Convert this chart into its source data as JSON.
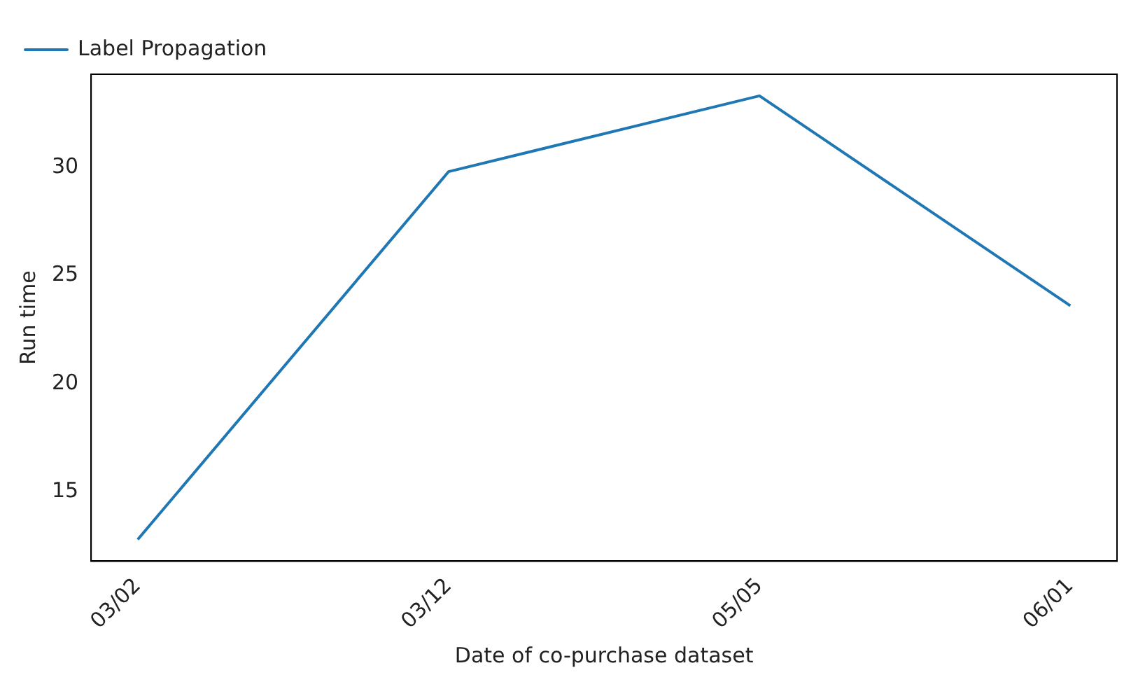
{
  "chart_data": {
    "type": "line",
    "xlabel": "Date of co-purchase dataset",
    "ylabel": "Run time",
    "categories": [
      "03/02",
      "03/12",
      "05/05",
      "06/01"
    ],
    "series": [
      {
        "name": "Label Propagation",
        "color": "#1f77b4",
        "values": [
          12.8,
          29.8,
          33.3,
          23.6
        ]
      }
    ],
    "ylim": [
      11.8,
      34.3
    ],
    "yticks": [
      15,
      20,
      25,
      30
    ],
    "grid": false,
    "legend": "top left"
  }
}
